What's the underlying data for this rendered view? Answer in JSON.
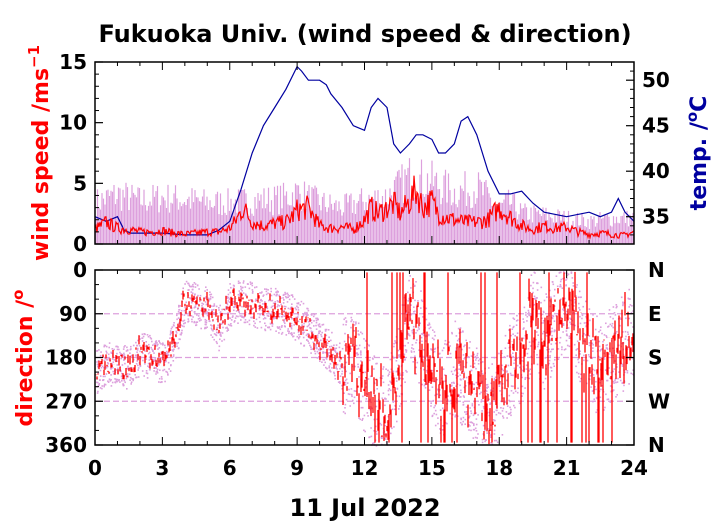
{
  "chart_data": [
    {
      "type": "line",
      "title": "Fukuoka Univ. (wind speed & direction)",
      "ylabel": "wind speed /ms",
      "ylabel_superscript": "−1",
      "y2label": "temp. /",
      "y2label_superscript": "o",
      "y2label_unit": "C",
      "xlim": [
        0,
        24
      ],
      "ylim": [
        0,
        15
      ],
      "y2lim": [
        32,
        52
      ],
      "yticks": [
        "0",
        "5",
        "10",
        "15"
      ],
      "y2ticks": [
        "35",
        "40",
        "45",
        "50"
      ],
      "colors": {
        "wind": "#ff0000",
        "gust": "#dda0dd",
        "temp": "#0000a0"
      },
      "series": [
        {
          "key": "temp",
          "x": [
            0,
            0.5,
            1,
            1.3,
            1.6,
            2,
            3,
            4,
            5,
            5.5,
            6,
            6.5,
            7,
            7.5,
            8,
            8.5,
            9,
            9.2,
            9.5,
            10,
            10.3,
            10.5,
            11,
            11.5,
            12,
            12.3,
            12.6,
            13,
            13.3,
            13.6,
            14,
            14.3,
            14.6,
            15,
            15.3,
            15.6,
            16,
            16.3,
            16.6,
            17,
            17.5,
            18,
            18.5,
            19,
            19.5,
            20,
            21,
            22,
            22.5,
            23,
            23.3,
            23.6,
            24
          ],
          "values": [
            35,
            34.5,
            35,
            33.5,
            33.2,
            33.2,
            33.2,
            33,
            33,
            33.5,
            34.5,
            38,
            42,
            45,
            47,
            49,
            51.5,
            51,
            50,
            50,
            49.5,
            48.5,
            47,
            45,
            44.5,
            47,
            48,
            47,
            43,
            42,
            43,
            44,
            44,
            43.5,
            42,
            42,
            43,
            45.5,
            46,
            44,
            40,
            37.5,
            37.5,
            37.8,
            36.5,
            35.5,
            35,
            35.5,
            35,
            35.5,
            37,
            35.5,
            34.5
          ]
        },
        {
          "key": "wind",
          "x": [
            0,
            0.5,
            1,
            1.5,
            2,
            2.5,
            3,
            3.5,
            4,
            4.5,
            5,
            5.5,
            6,
            6.3,
            6.6,
            7,
            7.5,
            8,
            8.5,
            8.8,
            9,
            9.5,
            10,
            10.5,
            11,
            11.5,
            12,
            12.3,
            12.6,
            13,
            13.3,
            13.6,
            14,
            14.3,
            14.6,
            15,
            15.3,
            15.6,
            16,
            16.5,
            17,
            17.5,
            18,
            18.5,
            19,
            19.5,
            20,
            20.5,
            21,
            21.5,
            22,
            22.5,
            23,
            23.5,
            24
          ],
          "values": [
            1.2,
            1.8,
            1.3,
            1.2,
            1.0,
            1.0,
            1.1,
            0.9,
            0.8,
            0.9,
            1.0,
            1.0,
            1.3,
            2.0,
            3.0,
            1.8,
            1.5,
            1.7,
            1.8,
            2.3,
            2.8,
            3.0,
            1.5,
            1.3,
            1.4,
            1.2,
            2.0,
            3.0,
            2.5,
            3.0,
            3.3,
            2.5,
            3.5,
            4.5,
            3.0,
            3.5,
            2.5,
            2.2,
            2.0,
            1.8,
            1.8,
            2.0,
            3.0,
            2.2,
            1.5,
            1.2,
            1.5,
            1.3,
            1.4,
            1.0,
            0.8,
            0.9,
            0.8,
            0.7,
            1.0
          ]
        },
        {
          "key": "gust",
          "x": [
            0,
            1,
            2,
            3,
            4,
            5,
            6,
            7,
            8,
            8.5,
            9,
            10,
            11,
            12,
            13,
            13.5,
            14,
            15,
            16,
            17,
            17.5,
            18,
            18.5,
            19,
            20,
            21,
            22,
            23,
            24
          ],
          "values": [
            4.0,
            4.8,
            4.2,
            4.5,
            4.3,
            4.0,
            4.0,
            4.2,
            4.3,
            4.5,
            5.0,
            4.0,
            3.5,
            4.2,
            4.6,
            5.5,
            6.5,
            6.0,
            5.0,
            5.5,
            4.5,
            3.5,
            4.0,
            3.0,
            2.8,
            2.5,
            2.2,
            2.5,
            2.5
          ]
        }
      ]
    },
    {
      "type": "scatter",
      "ylabel": "direction /",
      "ylabel_superscript": "o",
      "xlabel": "11 Jul 2022",
      "xlim": [
        0,
        24
      ],
      "ylim": [
        0,
        360
      ],
      "y_inverted": true,
      "yticks": [
        "0",
        "90",
        "180",
        "270",
        "360"
      ],
      "y2ticks": [
        "N",
        "E",
        "S",
        "W",
        "N"
      ],
      "xticks": [
        "0",
        "3",
        "6",
        "9",
        "12",
        "15",
        "18",
        "21",
        "24"
      ],
      "colors": {
        "dir": "#ff0000",
        "spread": "#dda0dd"
      },
      "series": [
        {
          "key": "direction",
          "x": [
            0,
            0.5,
            1,
            1.5,
            2,
            2.5,
            3,
            3.5,
            4,
            4.5,
            5,
            5.5,
            6,
            6.5,
            7,
            7.5,
            8,
            8.5,
            9,
            9.5,
            10,
            10.5,
            11,
            11.5,
            12,
            12.5,
            13,
            13.5,
            14,
            14.5,
            15,
            15.5,
            16,
            16.5,
            17,
            17.5,
            18,
            18.5,
            19,
            19.5,
            20,
            20.5,
            21,
            21.5,
            22,
            22.5,
            23,
            23.5,
            24
          ],
          "values": [
            210,
            190,
            195,
            200,
            170,
            180,
            190,
            150,
            60,
            70,
            80,
            120,
            70,
            60,
            70,
            80,
            80,
            90,
            100,
            120,
            150,
            170,
            200,
            180,
            240,
            280,
            300,
            200,
            100,
            140,
            220,
            250,
            200,
            230,
            260,
            300,
            250,
            200,
            180,
            90,
            150,
            100,
            60,
            120,
            180,
            200,
            170,
            150,
            120
          ]
        }
      ]
    }
  ]
}
